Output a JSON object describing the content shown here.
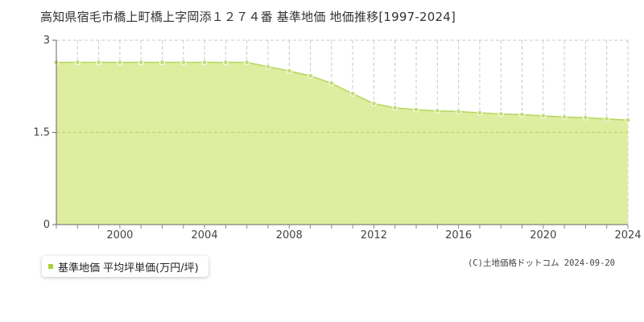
{
  "title": "高知県宿毛市橋上町橋上字岡添１２７４番 基準地価 地価推移[1997-2024]",
  "legend": {
    "label": "基準地価 平均坪単価(万円/坪)"
  },
  "credit": "(C)土地価格ドットコム 2024-09-20",
  "colors": {
    "fill": "#dcec9a",
    "line": "#b7d65e",
    "marker": "#c6de7d",
    "swatch": "#a9d12f"
  },
  "chart_data": {
    "type": "area",
    "x": [
      1997,
      1998,
      1999,
      2000,
      2001,
      2002,
      2003,
      2004,
      2005,
      2006,
      2007,
      2008,
      2009,
      2010,
      2011,
      2012,
      2013,
      2014,
      2015,
      2016,
      2017,
      2018,
      2019,
      2020,
      2021,
      2022,
      2023,
      2024
    ],
    "series": [
      {
        "name": "基準地価 平均坪単価(万円/坪)",
        "values": [
          2.64,
          2.64,
          2.64,
          2.64,
          2.64,
          2.64,
          2.64,
          2.64,
          2.64,
          2.64,
          2.57,
          2.5,
          2.42,
          2.3,
          2.13,
          1.97,
          1.9,
          1.87,
          1.85,
          1.84,
          1.82,
          1.8,
          1.79,
          1.77,
          1.75,
          1.74,
          1.72,
          1.7
        ]
      }
    ],
    "xlim": [
      1997,
      2024
    ],
    "ylim": [
      0,
      3
    ],
    "xticks": [
      "2000",
      "2004",
      "2008",
      "2012",
      "2016",
      "2020",
      "2024"
    ],
    "yticks": [
      "0",
      "1.5",
      "3"
    ],
    "grid": true
  }
}
